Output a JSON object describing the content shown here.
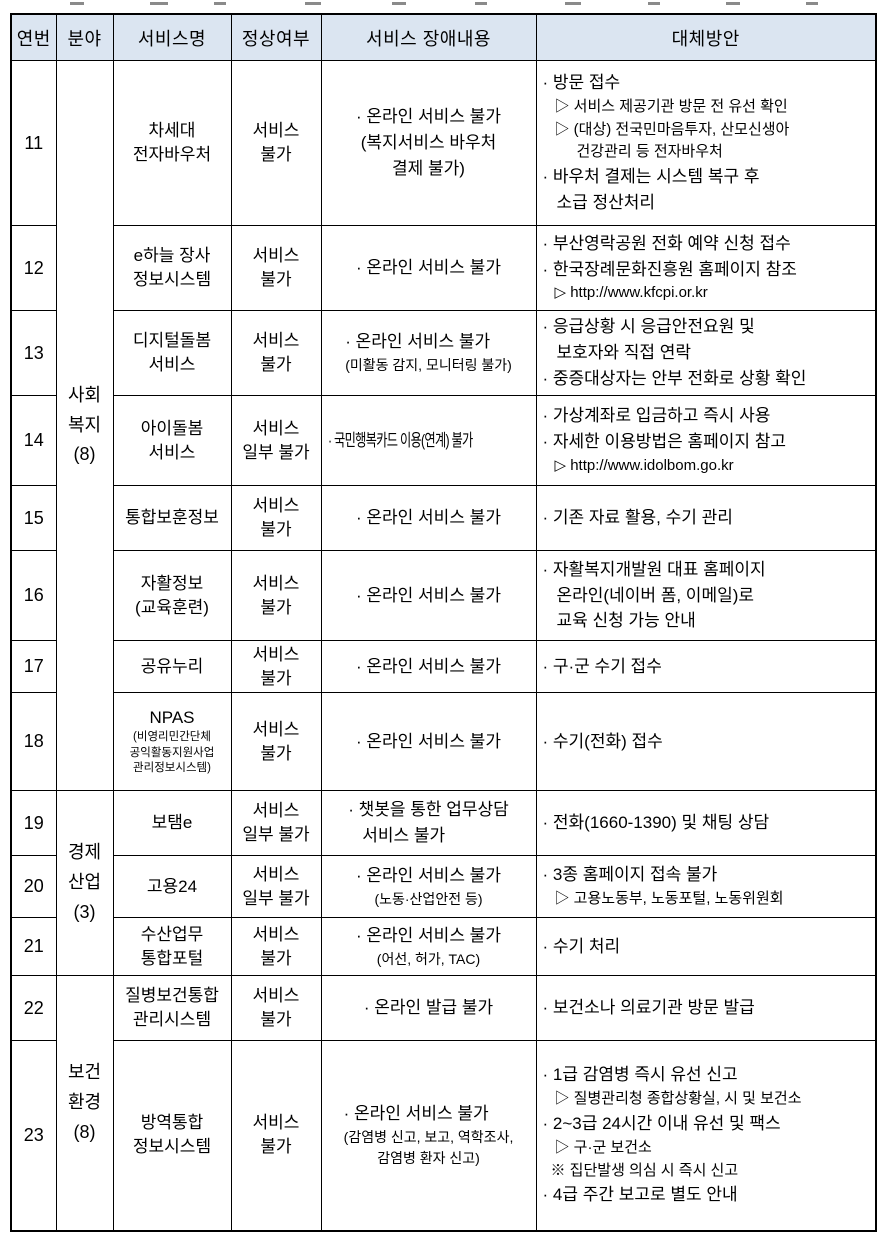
{
  "table": {
    "columns": [
      "연번",
      "분야",
      "서비스명",
      "정상여부",
      "서비스 장애내용",
      "대체방안"
    ],
    "header_bg": "#dbe5f1",
    "groups": [
      {
        "label_lines": [
          "사회",
          "복지",
          "(8)"
        ],
        "rowspan": 8
      },
      {
        "label_lines": [
          "경제",
          "산업",
          "(3)"
        ],
        "rowspan": 3
      },
      {
        "label_lines": [
          "보건",
          "환경",
          "(8)"
        ],
        "rowspan": 2
      }
    ],
    "rows": [
      {
        "no": "11",
        "group_start": 0,
        "service": [
          "차세대",
          "전자바우처"
        ],
        "status": [
          "서비스",
          "불가"
        ],
        "issue": [
          {
            "t": "main",
            "text": "· 온라인 서비스 불가"
          },
          {
            "t": "paren",
            "text": "(복지서비스 바우처"
          },
          {
            "t": "paren",
            "text": "결제 불가)"
          }
        ],
        "alt": [
          {
            "t": "main",
            "text": "· 방문 접수"
          },
          {
            "t": "sub",
            "text": "▷ 서비스 제공기관 방문 전 유선 확인"
          },
          {
            "t": "sub",
            "text": "▷ (대상) 전국민마음투자, 산모신생아"
          },
          {
            "t": "sub2",
            "text": "건강관리 등 전자바우처"
          },
          {
            "t": "main",
            "text": "· 바우처 결제는 시스템 복구 후"
          },
          {
            "t": "cont",
            "text": "소급 정산처리"
          }
        ]
      },
      {
        "no": "12",
        "service": [
          "e하늘 장사",
          "정보시스템"
        ],
        "status": [
          "서비스",
          "불가"
        ],
        "issue": [
          {
            "t": "main",
            "text": "· 온라인 서비스 불가"
          }
        ],
        "alt": [
          {
            "t": "main",
            "text": "· 부산영락공원 전화 예약 신청 접수"
          },
          {
            "t": "main",
            "text": "· 한국장례문화진흥원 홈페이지 참조"
          },
          {
            "t": "sub",
            "text": "▷ http://www.kfcpi.or.kr"
          }
        ]
      },
      {
        "no": "13",
        "service": [
          "디지털돌봄",
          "서비스"
        ],
        "status": [
          "서비스",
          "불가"
        ],
        "issue": [
          {
            "t": "main",
            "text": "· 온라인 서비스 불가"
          },
          {
            "t": "parenSm",
            "text": "(미활동 감지, 모니터링 불가)"
          }
        ],
        "alt": [
          {
            "t": "main",
            "text": "· 응급상황 시 응급안전요원 및"
          },
          {
            "t": "cont",
            "text": "보호자와 직접 연락"
          },
          {
            "t": "main",
            "text": "· 중증대상자는 안부 전화로 상황 확인"
          }
        ]
      },
      {
        "no": "14",
        "service": [
          "아이돌봄",
          "서비스"
        ],
        "status": [
          "서비스",
          "일부 불가"
        ],
        "issue": [
          {
            "t": "cond",
            "text": "· 국민행복카드 이용(연계) 불가"
          }
        ],
        "alt": [
          {
            "t": "main",
            "text": "· 가상계좌로 입금하고 즉시 사용"
          },
          {
            "t": "main",
            "text": "· 자세한 이용방법은 홈페이지 참고"
          },
          {
            "t": "sub",
            "text": "▷ http://www.idolbom.go.kr"
          }
        ]
      },
      {
        "no": "15",
        "service": [
          "통합보훈정보"
        ],
        "status": [
          "서비스",
          "불가"
        ],
        "issue": [
          {
            "t": "main",
            "text": "· 온라인 서비스 불가"
          }
        ],
        "alt": [
          {
            "t": "main",
            "text": "· 기존 자료 활용, 수기 관리"
          }
        ]
      },
      {
        "no": "16",
        "service": [
          "자활정보",
          "(교육훈련)"
        ],
        "status": [
          "서비스",
          "불가"
        ],
        "issue": [
          {
            "t": "main",
            "text": "· 온라인 서비스 불가"
          }
        ],
        "alt": [
          {
            "t": "main",
            "text": "· 자활복지개발원 대표 홈페이지"
          },
          {
            "t": "cont",
            "text": "온라인(네이버 폼, 이메일)로"
          },
          {
            "t": "cont",
            "text": "교육 신청 가능 안내"
          }
        ]
      },
      {
        "no": "17",
        "service": [
          "공유누리"
        ],
        "status": [
          "서비스",
          "불가"
        ],
        "issue": [
          {
            "t": "main",
            "text": "· 온라인 서비스 불가"
          }
        ],
        "alt": [
          {
            "t": "main",
            "text": "· 구·군 수기 접수"
          }
        ]
      },
      {
        "no": "18",
        "service": [
          "NPAS"
        ],
        "service_small": [
          "(비영리민간단체",
          "공익활동지원사업",
          "관리정보시스템)"
        ],
        "status": [
          "서비스",
          "불가"
        ],
        "issue": [
          {
            "t": "main",
            "text": "· 온라인 서비스 불가"
          }
        ],
        "alt": [
          {
            "t": "main",
            "text": "· 수기(전화) 접수"
          }
        ]
      },
      {
        "no": "19",
        "group_start": 1,
        "service": [
          "보탬e"
        ],
        "status": [
          "서비스",
          "일부 불가"
        ],
        "issue": [
          {
            "t": "main",
            "text": "· 챗봇을 통한 업무상담"
          },
          {
            "t": "cont",
            "text": "서비스 불가"
          }
        ],
        "alt": [
          {
            "t": "main",
            "text": "· 전화(1660-1390) 및 채팅 상담"
          }
        ]
      },
      {
        "no": "20",
        "service": [
          "고용24"
        ],
        "status": [
          "서비스",
          "일부 불가"
        ],
        "issue": [
          {
            "t": "main",
            "text": "· 온라인 서비스 불가"
          },
          {
            "t": "parenSm",
            "text": "(노동·산업안전 등)"
          }
        ],
        "alt": [
          {
            "t": "main",
            "text": "· 3종 홈페이지 접속 불가"
          },
          {
            "t": "sub",
            "text": "▷ 고용노동부, 노동포털, 노동위원회"
          }
        ]
      },
      {
        "no": "21",
        "service": [
          "수산업무",
          "통합포털"
        ],
        "status": [
          "서비스",
          "불가"
        ],
        "issue": [
          {
            "t": "main",
            "text": "· 온라인 서비스 불가"
          },
          {
            "t": "parenSm",
            "text": "(어선, 허가, TAC)"
          }
        ],
        "alt": [
          {
            "t": "main",
            "text": "· 수기 처리"
          }
        ]
      },
      {
        "no": "22",
        "group_start": 2,
        "service": [
          "질병보건통합",
          "관리시스템"
        ],
        "status": [
          "서비스",
          "불가"
        ],
        "issue": [
          {
            "t": "main",
            "text": "· 온라인 발급 불가"
          }
        ],
        "alt": [
          {
            "t": "main",
            "text": "· 보건소나 의료기관 방문 발급"
          }
        ]
      },
      {
        "no": "23",
        "service": [
          "방역통합",
          "정보시스템"
        ],
        "status": [
          "서비스",
          "불가"
        ],
        "issue": [
          {
            "t": "main",
            "text": "· 온라인 서비스 불가"
          },
          {
            "t": "parenSm",
            "text": "(감염병 신고, 보고, 역학조사,"
          },
          {
            "t": "parenSm",
            "text": "감염병 환자 신고)"
          }
        ],
        "alt": [
          {
            "t": "main",
            "text": "· 1급 감염병 즉시 유선 신고"
          },
          {
            "t": "sub",
            "text": "▷ 질병관리청 종합상황실, 시 및 보건소"
          },
          {
            "t": "main",
            "text": "· 2~3급 24시간 이내 유선 및 팩스"
          },
          {
            "t": "sub",
            "text": "▷ 구·군 보건소"
          },
          {
            "t": "note",
            "text": "※ 집단발생 의심 시 즉시 신고"
          },
          {
            "t": "main",
            "text": "· 4급 주간 보고로 별도 안내"
          }
        ]
      }
    ]
  }
}
